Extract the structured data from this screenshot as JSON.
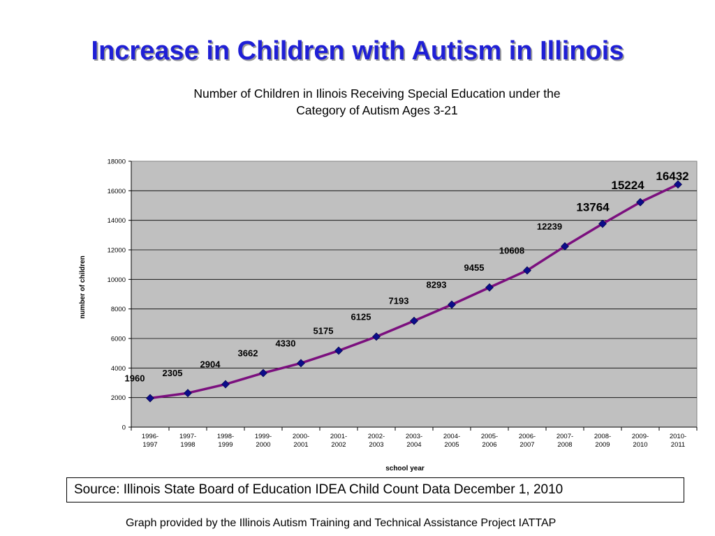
{
  "slide_title": "Increase in Children with Autism in Illinois",
  "source": "Source:  Illinois State Board of Education IDEA Child Count Data December 1, 2010",
  "credit": "Graph provided by the Illinois Autism Training and Technical Assistance Project IATTAP",
  "colors": {
    "title": "#1f1fd6",
    "line": "#7b0f7e",
    "marker": "#0c0c8a",
    "plot_bg": "#c0c0c0"
  },
  "chart_data": {
    "type": "line",
    "title_line1": "Number of Children in Ilinois Receiving Special Education under the",
    "title_line2": "Category of Autism Ages 3-21",
    "xlabel": "school year",
    "ylabel": "number of children",
    "ylim": [
      0,
      18000
    ],
    "yticks": [
      "0",
      "2000",
      "4000",
      "6000",
      "8000",
      "10000",
      "12000",
      "14000",
      "16000",
      "18000"
    ],
    "grid": true,
    "legend": "none",
    "categories": [
      [
        "1996-",
        "1997"
      ],
      [
        "1997-",
        "1998"
      ],
      [
        "1998-",
        "1999"
      ],
      [
        "1999-",
        "2000"
      ],
      [
        "2000-",
        "2001"
      ],
      [
        "2001-",
        "2002"
      ],
      [
        "2002-",
        "2003"
      ],
      [
        "2003-",
        "2004"
      ],
      [
        "2004-",
        "2005"
      ],
      [
        "2005-",
        "2006"
      ],
      [
        "2006-",
        "2007"
      ],
      [
        "2007-",
        "2008"
      ],
      [
        "2008-",
        "2009"
      ],
      [
        "2009-",
        "2010"
      ],
      [
        "2010-",
        "2011"
      ]
    ],
    "values": [
      1960,
      2305,
      2904,
      3662,
      4330,
      5175,
      6125,
      7193,
      8293,
      9455,
      10608,
      12239,
      13764,
      15224,
      16432
    ],
    "labels": [
      "1960",
      "2305",
      "2904",
      "3662",
      "4330",
      "5175",
      "6125",
      "7193",
      "8293",
      "9455",
      "10608",
      "12239",
      "13764",
      "15224",
      "16432"
    ]
  }
}
